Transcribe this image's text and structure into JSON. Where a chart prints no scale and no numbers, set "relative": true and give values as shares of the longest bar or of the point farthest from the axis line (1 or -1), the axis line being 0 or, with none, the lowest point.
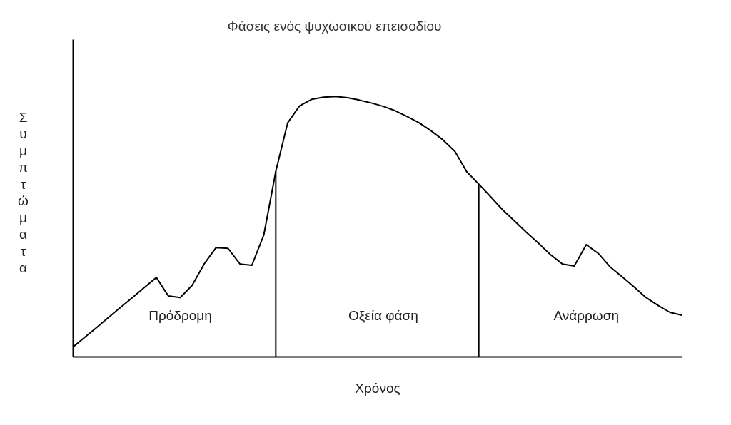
{
  "chart_data": {
    "type": "line",
    "title": "Φάσεις ενός ψυχωσικού επεισοδίου",
    "xlabel": "Χρόνος",
    "ylabel": "Συμπτώματα",
    "relative": true,
    "grid": false,
    "categories": [
      null,
      null,
      null,
      null,
      null,
      null,
      null,
      null,
      null,
      null,
      null,
      null,
      null,
      null,
      null,
      null,
      null,
      null,
      null,
      null,
      null,
      null,
      null,
      null,
      null,
      null,
      null,
      null,
      null,
      null,
      null,
      null,
      null,
      null,
      null,
      null,
      null,
      null,
      null,
      null,
      null,
      null,
      null,
      null,
      null,
      null,
      null,
      null,
      null,
      null,
      null,
      null
    ],
    "series": [
      {
        "color": "#000000",
        "values": [
          0.036,
          0.074,
          0.112,
          0.151,
          0.189,
          0.227,
          0.266,
          0.304,
          0.233,
          0.227,
          0.274,
          0.356,
          0.419,
          0.416,
          0.356,
          0.351,
          0.468,
          0.712,
          0.899,
          0.964,
          0.989,
          0.997,
          1.0,
          0.995,
          0.986,
          0.975,
          0.962,
          0.945,
          0.923,
          0.899,
          0.868,
          0.833,
          0.789,
          0.71,
          0.663,
          0.614,
          0.564,
          0.521,
          0.477,
          0.436,
          0.392,
          0.356,
          0.348,
          0.43,
          0.397,
          0.345,
          0.307,
          0.268,
          0.227,
          0.197,
          0.17,
          0.159
        ]
      }
    ],
    "annotations": [
      "Πρόδρομη",
      "Οξεία φάση",
      "Ανάρρωση"
    ]
  }
}
